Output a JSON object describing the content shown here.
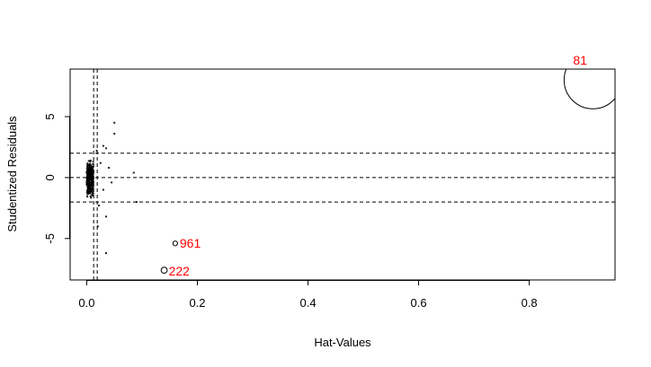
{
  "chart_data": {
    "type": "scatter",
    "title": "",
    "xlabel": "Hat-Values",
    "ylabel": "Studentized Residuals",
    "xlim": [
      -0.03,
      0.955
    ],
    "ylim": [
      -8.4,
      8.9
    ],
    "x_ticks": [
      0.0,
      0.2,
      0.4,
      0.6,
      0.8
    ],
    "x_tick_labels": [
      "0.0",
      "0.2",
      "0.4",
      "0.6",
      "0.8"
    ],
    "y_ticks": [
      -5,
      0,
      5
    ],
    "y_tick_labels": [
      "-5",
      "0",
      "5"
    ],
    "reference_lines": {
      "horizontal": [
        -2,
        0,
        2
      ],
      "vertical": [
        0.0125,
        0.019
      ]
    },
    "influential_points": [
      {
        "label": "81",
        "x": 0.915,
        "y": 8.0
      },
      {
        "label": "961",
        "x": 0.16,
        "y": -5.4
      },
      {
        "label": "222",
        "x": 0.14,
        "y": -7.6
      }
    ],
    "other_points": [
      {
        "x": 0.05,
        "y": 4.5
      },
      {
        "x": 0.05,
        "y": 3.6
      },
      {
        "x": 0.03,
        "y": 2.6
      },
      {
        "x": 0.035,
        "y": 2.4
      },
      {
        "x": 0.085,
        "y": 0.4
      },
      {
        "x": 0.09,
        "y": -2.0
      },
      {
        "x": 0.035,
        "y": -3.2
      },
      {
        "x": 0.035,
        "y": -6.2
      },
      {
        "x": 0.02,
        "y": -4.0
      },
      {
        "x": 0.025,
        "y": 1.2
      },
      {
        "x": 0.03,
        "y": -1.0
      },
      {
        "x": 0.045,
        "y": -0.4
      },
      {
        "x": 0.018,
        "y": 2.2
      },
      {
        "x": 0.022,
        "y": -2.3
      },
      {
        "x": 0.04,
        "y": 0.8
      }
    ],
    "main_cluster": {
      "x_range": [
        0.0,
        0.012
      ],
      "y_range": [
        -2.5,
        2.6
      ],
      "count": 320
    },
    "label_color": "#ff0000",
    "bubble_color": "#000000",
    "grid": false
  }
}
